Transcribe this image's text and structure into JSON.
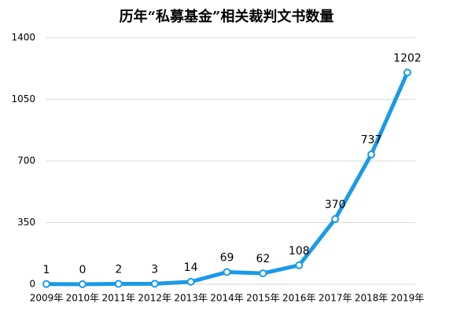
{
  "chart_data": {
    "type": "line",
    "title": "历年“私募基金”相关裁判文书数量",
    "categories": [
      "2009年",
      "2010年",
      "2011年",
      "2012年",
      "2013年",
      "2014年",
      "2015年",
      "2016年",
      "2017年",
      "2018年",
      "2019年"
    ],
    "values": [
      1,
      0,
      2,
      3,
      14,
      69,
      62,
      108,
      370,
      737,
      1202
    ],
    "color": "#1a9ae8",
    "ylim": [
      0,
      1400
    ],
    "yticks": [
      0,
      350,
      700,
      1050,
      1400
    ],
    "grid": true
  }
}
